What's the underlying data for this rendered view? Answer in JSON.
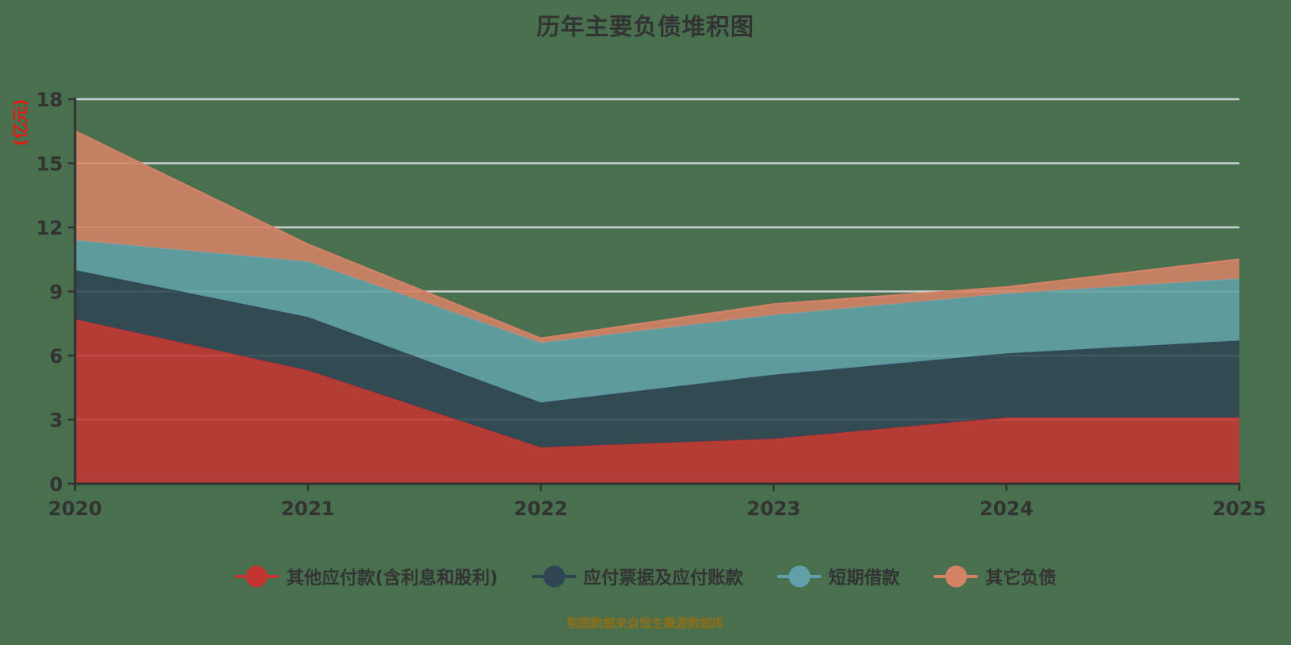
{
  "title": "历年主要负债堆积图",
  "caption": "制图数据来自恒生聚源数据库",
  "colors": {
    "background": "#48704f",
    "grid": "#c9ced1",
    "axis": "#333333",
    "tick_label": "#333333",
    "axis_name": "#e01c0f",
    "title": "#333333",
    "caption": "#8f6e1a",
    "legend_label": "#333333"
  },
  "chart_data": {
    "type": "area",
    "stacked": true,
    "title": "历年主要负债堆积图",
    "xlabel": "",
    "ylabel": "(亿元)",
    "categories": [
      "2020",
      "2021",
      "2022",
      "2023",
      "2024",
      "2025"
    ],
    "yticks": [
      0,
      3,
      6,
      9,
      12,
      15,
      18
    ],
    "ylim": [
      0,
      18
    ],
    "grid": true,
    "legend_position": "bottom",
    "series": [
      {
        "name": "其他应付款(含利息和股利)",
        "color": "#c23531",
        "values": [
          7.7,
          5.3,
          1.7,
          2.1,
          3.1,
          3.1
        ]
      },
      {
        "name": "应付票据及应付账款",
        "color": "#2f4554",
        "values": [
          2.3,
          2.5,
          2.1,
          3.0,
          3.0,
          3.6
        ]
      },
      {
        "name": "短期借款",
        "color": "#61a0a8",
        "values": [
          1.4,
          2.6,
          2.8,
          2.8,
          2.8,
          2.9
        ]
      },
      {
        "name": "其它负债",
        "color": "#d48265",
        "values": [
          5.1,
          0.8,
          0.2,
          0.5,
          0.3,
          0.9
        ]
      }
    ],
    "cumulative_totals": [
      16.5,
      11.2,
      6.8,
      8.4,
      9.2,
      10.5
    ]
  }
}
